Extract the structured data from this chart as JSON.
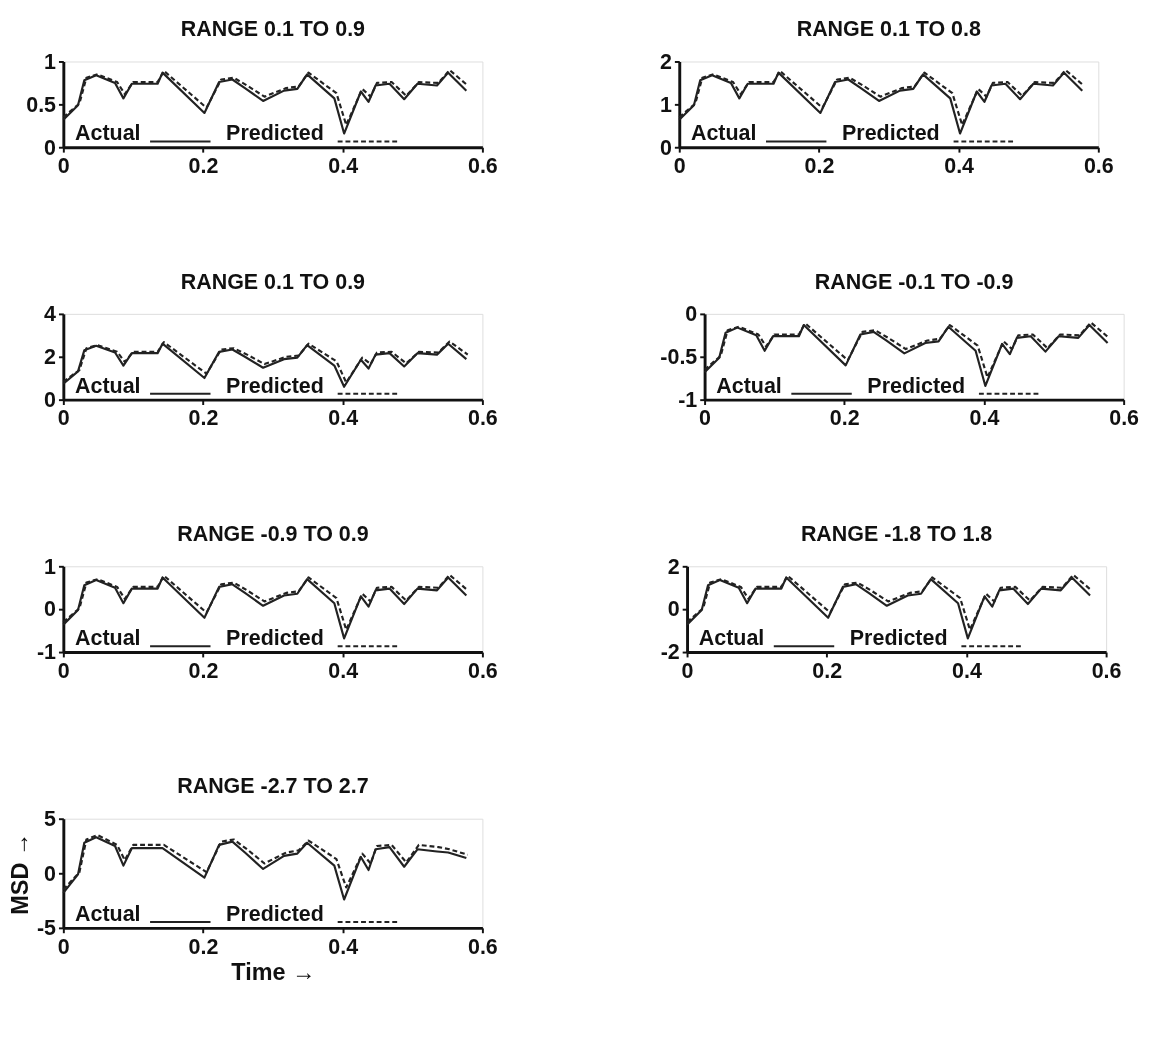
{
  "chart_data": [
    {
      "type": "line",
      "title": "RANGE 0.1 TO 0.9",
      "x": [
        0,
        0.021,
        0.03,
        0.047,
        0.074,
        0.086,
        0.098,
        0.135,
        0.142,
        0.202,
        0.223,
        0.242,
        0.26,
        0.286,
        0.316,
        0.335,
        0.349,
        0.388,
        0.402,
        0.426,
        0.437,
        0.447,
        0.467,
        0.488,
        0.507,
        0.535,
        0.551,
        0.577
      ],
      "xlim": [
        0,
        0.6
      ],
      "xticks": [
        0,
        0.2,
        0.4,
        0.6
      ],
      "ylim": [
        0,
        1
      ],
      "yticks": [
        0,
        0.5,
        1
      ],
      "grid": false,
      "legend": "bottom left",
      "series": [
        {
          "name": "Actual",
          "color": "#222222",
          "line_style": "solid",
          "values": [
            0.32,
            0.49,
            0.78,
            0.84,
            0.75,
            0.57,
            0.74,
            0.74,
            0.87,
            0.4,
            0.76,
            0.79,
            0.69,
            0.54,
            0.66,
            0.68,
            0.85,
            0.57,
            0.16,
            0.65,
            0.53,
            0.72,
            0.74,
            0.56,
            0.74,
            0.72,
            0.87,
            0.66
          ]
        },
        {
          "name": "Predicted",
          "color": "#222222",
          "line_style": "dashed",
          "x": [
            0,
            0.023,
            0.033,
            0.049,
            0.077,
            0.088,
            0.1,
            0.135,
            0.144,
            0.205,
            0.226,
            0.244,
            0.263,
            0.288,
            0.319,
            0.337,
            0.351,
            0.391,
            0.405,
            0.428,
            0.44,
            0.449,
            0.47,
            0.491,
            0.509,
            0.537,
            0.553,
            0.579
          ],
          "values": [
            0.35,
            0.51,
            0.81,
            0.85,
            0.76,
            0.62,
            0.76,
            0.76,
            0.89,
            0.46,
            0.79,
            0.81,
            0.72,
            0.59,
            0.69,
            0.71,
            0.87,
            0.63,
            0.26,
            0.68,
            0.59,
            0.75,
            0.76,
            0.6,
            0.76,
            0.75,
            0.9,
            0.72
          ]
        }
      ]
    },
    {
      "type": "line",
      "title": "RANGE 0.1 TO 0.8",
      "x": [
        0,
        0.021,
        0.03,
        0.047,
        0.074,
        0.086,
        0.098,
        0.135,
        0.142,
        0.202,
        0.223,
        0.242,
        0.26,
        0.286,
        0.316,
        0.335,
        0.349,
        0.388,
        0.402,
        0.426,
        0.437,
        0.447,
        0.467,
        0.488,
        0.507,
        0.535,
        0.551,
        0.577
      ],
      "xlim": [
        0,
        0.6
      ],
      "xticks": [
        0,
        0.2,
        0.4,
        0.6
      ],
      "ylim": [
        0,
        2
      ],
      "yticks": [
        0,
        1,
        2
      ],
      "grid": false,
      "legend": "bottom left",
      "series": [
        {
          "name": "Actual",
          "color": "#222222",
          "line_style": "solid",
          "values": [
            0.64,
            0.98,
            1.56,
            1.68,
            1.5,
            1.14,
            1.48,
            1.48,
            1.74,
            0.8,
            1.52,
            1.58,
            1.38,
            1.08,
            1.32,
            1.36,
            1.7,
            1.14,
            0.32,
            1.3,
            1.06,
            1.44,
            1.48,
            1.12,
            1.48,
            1.44,
            1.74,
            1.32
          ]
        },
        {
          "name": "Predicted",
          "color": "#222222",
          "line_style": "dashed",
          "x": [
            0,
            0.023,
            0.033,
            0.049,
            0.077,
            0.088,
            0.1,
            0.135,
            0.144,
            0.205,
            0.226,
            0.244,
            0.263,
            0.288,
            0.319,
            0.337,
            0.351,
            0.391,
            0.405,
            0.428,
            0.44,
            0.449,
            0.47,
            0.491,
            0.509,
            0.537,
            0.553,
            0.579
          ],
          "values": [
            0.7,
            1.02,
            1.62,
            1.7,
            1.52,
            1.24,
            1.52,
            1.52,
            1.78,
            0.92,
            1.58,
            1.62,
            1.44,
            1.18,
            1.38,
            1.42,
            1.74,
            1.26,
            0.52,
            1.36,
            1.18,
            1.5,
            1.52,
            1.2,
            1.52,
            1.5,
            1.8,
            1.44
          ]
        }
      ]
    },
    {
      "type": "line",
      "title": "RANGE 0.1 TO 0.9",
      "x": [
        0,
        0.021,
        0.03,
        0.047,
        0.074,
        0.086,
        0.098,
        0.135,
        0.142,
        0.202,
        0.223,
        0.242,
        0.26,
        0.286,
        0.316,
        0.335,
        0.349,
        0.388,
        0.402,
        0.426,
        0.437,
        0.447,
        0.467,
        0.488,
        0.507,
        0.535,
        0.551,
        0.577
      ],
      "xlim": [
        0,
        0.6
      ],
      "xticks": [
        0,
        0.2,
        0.4,
        0.6
      ],
      "ylim": [
        0,
        4
      ],
      "yticks": [
        0,
        2,
        4
      ],
      "grid": false,
      "legend": "bottom left",
      "series": [
        {
          "name": "Actual",
          "color": "#222222",
          "line_style": "solid",
          "values": [
            0.74,
            1.32,
            2.3,
            2.51,
            2.2,
            1.59,
            2.17,
            2.17,
            2.61,
            1.01,
            2.23,
            2.34,
            2.0,
            1.49,
            1.89,
            1.96,
            2.54,
            1.59,
            0.6,
            1.86,
            1.45,
            2.1,
            2.17,
            1.55,
            2.17,
            2.1,
            2.61,
            1.89
          ]
        },
        {
          "name": "Predicted",
          "color": "#222222",
          "line_style": "dashed",
          "x": [
            0,
            0.023,
            0.033,
            0.049,
            0.077,
            0.088,
            0.1,
            0.135,
            0.144,
            0.205,
            0.226,
            0.244,
            0.263,
            0.288,
            0.319,
            0.337,
            0.351,
            0.391,
            0.405,
            0.428,
            0.44,
            0.449,
            0.47,
            0.491,
            0.509,
            0.537,
            0.553,
            0.579
          ],
          "values": [
            0.84,
            1.38,
            2.4,
            2.54,
            2.23,
            1.76,
            2.23,
            2.23,
            2.68,
            1.21,
            2.34,
            2.4,
            2.1,
            1.66,
            2.0,
            2.06,
            2.61,
            1.79,
            0.8,
            1.96,
            1.66,
            2.2,
            2.23,
            1.69,
            2.23,
            2.2,
            2.71,
            2.1
          ]
        }
      ]
    },
    {
      "type": "line",
      "title": "RANGE -0.1 TO -0.9",
      "x": [
        0,
        0.021,
        0.03,
        0.047,
        0.074,
        0.086,
        0.098,
        0.135,
        0.142,
        0.202,
        0.223,
        0.242,
        0.26,
        0.286,
        0.316,
        0.335,
        0.349,
        0.388,
        0.402,
        0.426,
        0.437,
        0.447,
        0.467,
        0.488,
        0.507,
        0.535,
        0.551,
        0.577
      ],
      "xlim": [
        0,
        0.6
      ],
      "xticks": [
        0,
        0.2,
        0.4,
        0.6
      ],
      "ylim": [
        -1,
        0
      ],
      "yticks": [
        -1,
        -0.5,
        0
      ],
      "grid": false,
      "legend": "bottom left",
      "series": [
        {
          "name": "Actual",
          "color": "#222222",
          "line_style": "solid",
          "values": [
            -0.68,
            -0.51,
            -0.22,
            -0.16,
            -0.25,
            -0.43,
            -0.26,
            -0.26,
            -0.13,
            -0.6,
            -0.24,
            -0.21,
            -0.31,
            -0.46,
            -0.34,
            -0.32,
            -0.15,
            -0.43,
            -0.84,
            -0.35,
            -0.47,
            -0.28,
            -0.26,
            -0.44,
            -0.26,
            -0.28,
            -0.13,
            -0.34
          ]
        },
        {
          "name": "Predicted",
          "color": "#222222",
          "line_style": "dashed",
          "x": [
            0,
            0.023,
            0.033,
            0.049,
            0.077,
            0.088,
            0.1,
            0.135,
            0.144,
            0.205,
            0.226,
            0.244,
            0.263,
            0.288,
            0.319,
            0.337,
            0.351,
            0.391,
            0.405,
            0.428,
            0.44,
            0.449,
            0.47,
            0.491,
            0.509,
            0.537,
            0.553,
            0.579
          ],
          "values": [
            -0.65,
            -0.49,
            -0.19,
            -0.15,
            -0.24,
            -0.38,
            -0.24,
            -0.24,
            -0.11,
            -0.54,
            -0.21,
            -0.19,
            -0.28,
            -0.41,
            -0.31,
            -0.29,
            -0.13,
            -0.37,
            -0.74,
            -0.32,
            -0.41,
            -0.25,
            -0.24,
            -0.4,
            -0.24,
            -0.25,
            -0.1,
            -0.28
          ]
        }
      ]
    },
    {
      "type": "line",
      "title": "RANGE -0.9 TO 0.9",
      "x": [
        0,
        0.021,
        0.03,
        0.047,
        0.074,
        0.086,
        0.098,
        0.135,
        0.142,
        0.202,
        0.223,
        0.242,
        0.26,
        0.286,
        0.316,
        0.335,
        0.349,
        0.388,
        0.402,
        0.426,
        0.437,
        0.447,
        0.467,
        0.488,
        0.507,
        0.535,
        0.551,
        0.577
      ],
      "xlim": [
        0,
        0.6
      ],
      "xticks": [
        0,
        0.2,
        0.4,
        0.6
      ],
      "ylim": [
        -1,
        1
      ],
      "yticks": [
        -1,
        0,
        1
      ],
      "grid": false,
      "legend": "bottom left",
      "series": [
        {
          "name": "Actual",
          "color": "#222222",
          "line_style": "solid",
          "values": [
            -0.36,
            -0.02,
            0.56,
            0.68,
            0.5,
            0.14,
            0.48,
            0.48,
            0.74,
            -0.2,
            0.52,
            0.58,
            0.38,
            0.08,
            0.32,
            0.36,
            0.7,
            0.14,
            -0.68,
            0.3,
            0.06,
            0.44,
            0.48,
            0.12,
            0.48,
            0.44,
            0.74,
            0.32
          ]
        },
        {
          "name": "Predicted",
          "color": "#222222",
          "line_style": "dashed",
          "x": [
            0,
            0.023,
            0.033,
            0.049,
            0.077,
            0.088,
            0.1,
            0.135,
            0.144,
            0.205,
            0.226,
            0.244,
            0.263,
            0.288,
            0.319,
            0.337,
            0.351,
            0.391,
            0.405,
            0.428,
            0.44,
            0.449,
            0.47,
            0.491,
            0.509,
            0.537,
            0.553,
            0.579
          ],
          "values": [
            -0.3,
            0.02,
            0.62,
            0.7,
            0.52,
            0.24,
            0.52,
            0.52,
            0.78,
            -0.08,
            0.58,
            0.62,
            0.44,
            0.18,
            0.38,
            0.42,
            0.74,
            0.26,
            -0.48,
            0.36,
            0.18,
            0.5,
            0.52,
            0.2,
            0.52,
            0.5,
            0.8,
            0.44
          ]
        }
      ]
    },
    {
      "type": "line",
      "title": "RANGE -1.8 TO 1.8",
      "x": [
        0,
        0.021,
        0.03,
        0.047,
        0.074,
        0.086,
        0.098,
        0.135,
        0.142,
        0.202,
        0.223,
        0.242,
        0.26,
        0.286,
        0.316,
        0.335,
        0.349,
        0.388,
        0.402,
        0.426,
        0.437,
        0.447,
        0.467,
        0.488,
        0.507,
        0.535,
        0.551,
        0.577
      ],
      "xlim": [
        0,
        0.6
      ],
      "xticks": [
        0,
        0.2,
        0.4,
        0.6
      ],
      "ylim": [
        -2,
        2
      ],
      "yticks": [
        -2,
        0,
        2
      ],
      "grid": false,
      "legend": "bottom left",
      "series": [
        {
          "name": "Actual",
          "color": "#222222",
          "line_style": "solid",
          "values": [
            -0.72,
            -0.04,
            1.12,
            1.36,
            1.0,
            0.28,
            0.96,
            0.96,
            1.48,
            -0.4,
            1.04,
            1.16,
            0.76,
            0.16,
            0.64,
            0.72,
            1.4,
            0.28,
            -1.36,
            0.6,
            0.12,
            0.88,
            0.96,
            0.24,
            0.96,
            0.88,
            1.48,
            0.64
          ]
        },
        {
          "name": "Predicted",
          "color": "#222222",
          "line_style": "dashed",
          "x": [
            0,
            0.023,
            0.033,
            0.049,
            0.077,
            0.088,
            0.1,
            0.135,
            0.144,
            0.205,
            0.226,
            0.244,
            0.263,
            0.288,
            0.319,
            0.337,
            0.351,
            0.391,
            0.405,
            0.428,
            0.44,
            0.449,
            0.47,
            0.491,
            0.509,
            0.537,
            0.553,
            0.579
          ],
          "values": [
            -0.6,
            0.04,
            1.24,
            1.4,
            1.04,
            0.48,
            1.04,
            1.04,
            1.56,
            -0.16,
            1.16,
            1.24,
            0.88,
            0.36,
            0.76,
            0.84,
            1.48,
            0.52,
            -0.96,
            0.72,
            0.36,
            1.0,
            1.04,
            0.4,
            1.04,
            1.0,
            1.6,
            0.88
          ]
        }
      ]
    },
    {
      "type": "line",
      "title": "RANGE -2.7 TO 2.7",
      "xlabel": "Time →",
      "ylabel": "MSD →",
      "x": [
        0,
        0.021,
        0.03,
        0.047,
        0.074,
        0.086,
        0.098,
        0.135,
        0.142,
        0.202,
        0.223,
        0.242,
        0.26,
        0.286,
        0.316,
        0.335,
        0.349,
        0.388,
        0.402,
        0.426,
        0.437,
        0.447,
        0.467,
        0.488,
        0.507,
        0.535,
        0.551,
        0.577
      ],
      "xlim": [
        0,
        0.6
      ],
      "xticks": [
        0,
        0.2,
        0.4,
        0.6
      ],
      "ylim": [
        -5,
        5
      ],
      "yticks": [
        -5,
        0,
        5
      ],
      "grid": false,
      "legend": "bottom left",
      "series": [
        {
          "name": "Actual",
          "color": "#222222",
          "line_style": "solid",
          "values": [
            -1.8,
            -0.1,
            2.8,
            3.3,
            2.5,
            0.7,
            2.3,
            2.3,
            2.3,
            -0.4,
            2.6,
            2.9,
            1.9,
            0.4,
            1.6,
            1.8,
            2.8,
            0.7,
            -2.4,
            1.5,
            0.3,
            2.2,
            2.4,
            0.6,
            2.2,
            2.0,
            1.9,
            1.4
          ]
        },
        {
          "name": "Predicted",
          "color": "#222222",
          "line_style": "dashed",
          "x": [
            0,
            0.023,
            0.033,
            0.049,
            0.077,
            0.088,
            0.1,
            0.135,
            0.144,
            0.205,
            0.226,
            0.244,
            0.263,
            0.288,
            0.319,
            0.337,
            0.351,
            0.391,
            0.405,
            0.428,
            0.44,
            0.449,
            0.47,
            0.491,
            0.509,
            0.537,
            0.553,
            0.579
          ],
          "values": [
            -1.5,
            0.1,
            3.1,
            3.5,
            2.6,
            1.2,
            2.6,
            2.6,
            2.6,
            0.1,
            2.9,
            3.1,
            2.2,
            0.9,
            1.9,
            2.1,
            3.0,
            1.3,
            -1.3,
            1.8,
            0.9,
            2.5,
            2.6,
            1.0,
            2.6,
            2.4,
            2.2,
            1.7
          ]
        }
      ]
    }
  ]
}
